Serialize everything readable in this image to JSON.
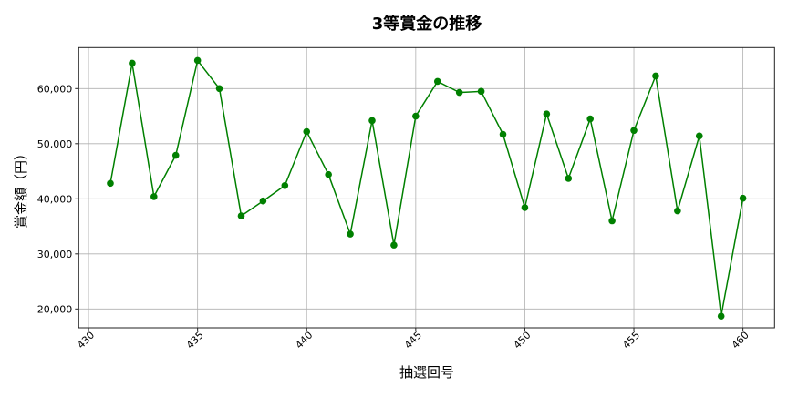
{
  "chart_data": {
    "type": "line",
    "title": "3等賞金の推移",
    "xlabel": "抽選回号",
    "ylabel": "賞金額（円）",
    "x": [
      431,
      432,
      433,
      434,
      435,
      436,
      437,
      438,
      439,
      440,
      441,
      442,
      443,
      444,
      445,
      446,
      447,
      448,
      449,
      450,
      451,
      452,
      453,
      454,
      455,
      456,
      457,
      458,
      459,
      460
    ],
    "series": [
      {
        "values": [
          42800,
          64600,
          40400,
          47900,
          65100,
          60000,
          36900,
          39600,
          42400,
          52200,
          44400,
          33600,
          54200,
          31600,
          55000,
          61300,
          59300,
          59500,
          51700,
          38400,
          55400,
          43700,
          54500,
          36000,
          52400,
          62300,
          37800,
          51400,
          18700,
          40100
        ],
        "color": "#008000",
        "marker": "circle"
      }
    ],
    "xticks": [
      "430",
      "435",
      "440",
      "445",
      "450",
      "455",
      "460"
    ],
    "xtick_values": [
      430,
      435,
      440,
      445,
      450,
      455,
      460
    ],
    "yticks": [
      "20,000",
      "30,000",
      "40,000",
      "50,000",
      "60,000"
    ],
    "ytick_values": [
      20000,
      30000,
      40000,
      50000,
      60000
    ],
    "xlim": [
      429.55,
      461.45
    ],
    "ylim": [
      16580,
      67440
    ],
    "grid": true,
    "xtick_rotation": 45
  }
}
